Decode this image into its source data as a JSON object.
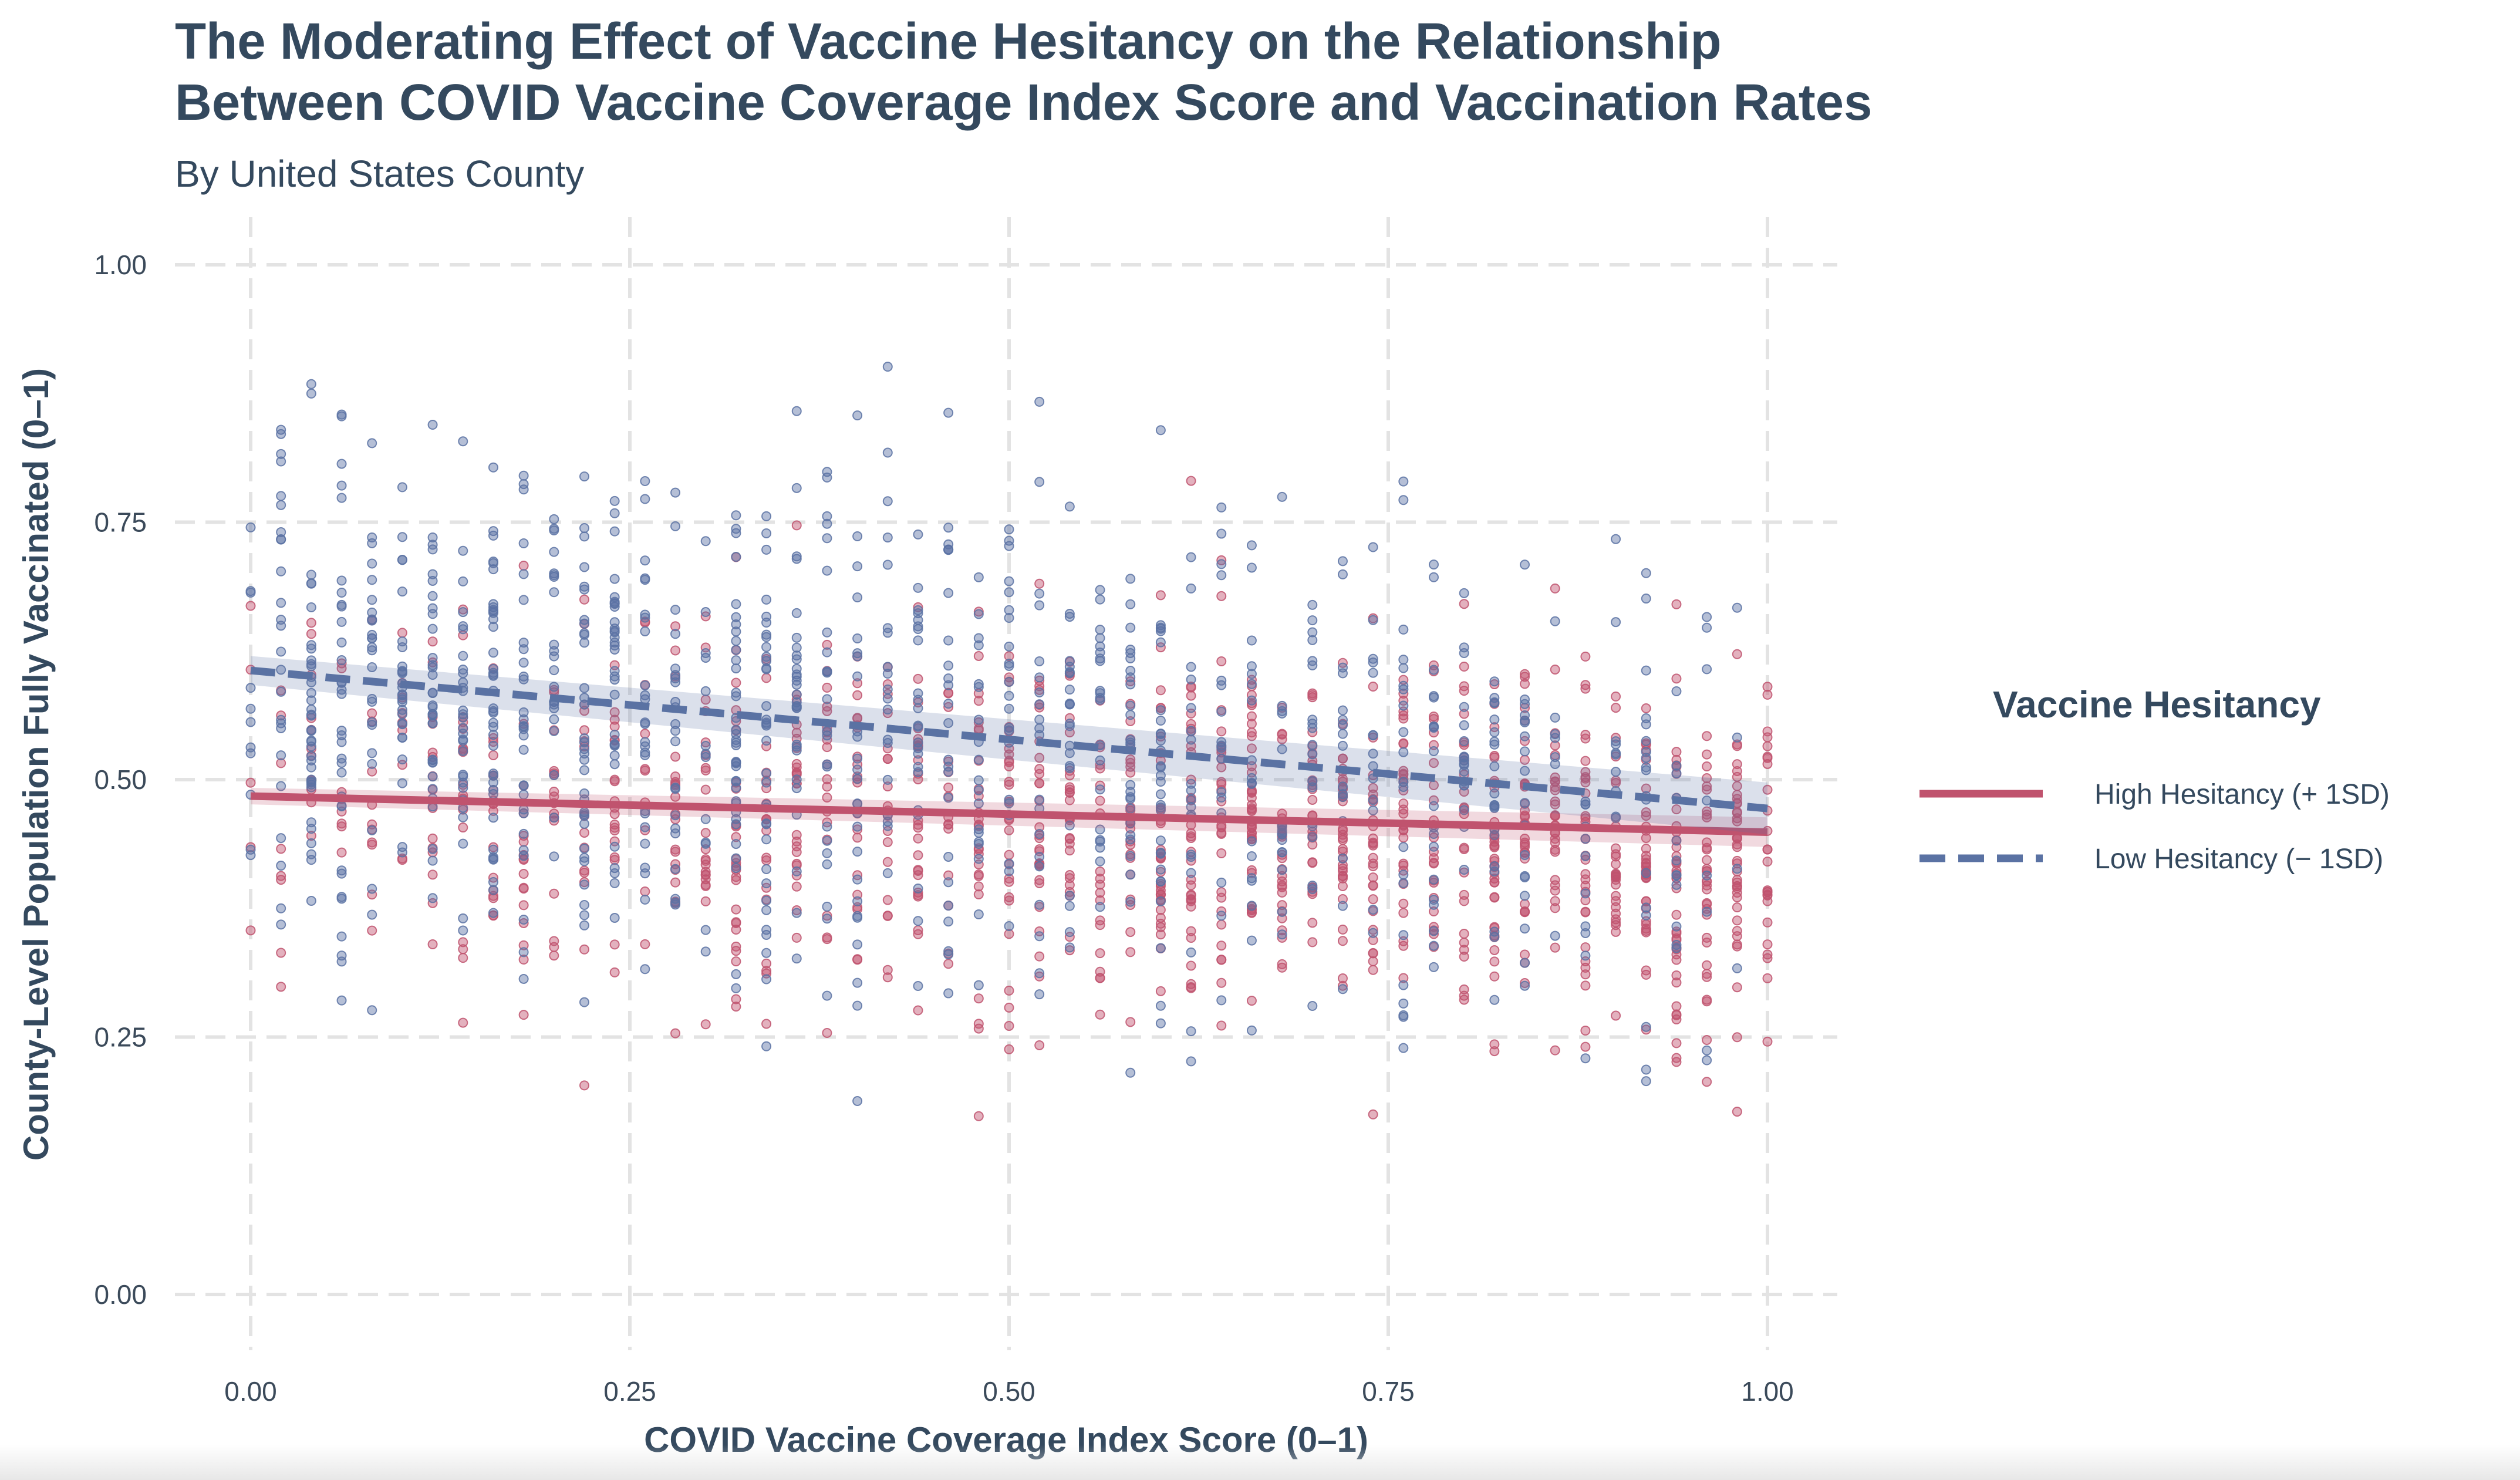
{
  "chart_data": {
    "type": "scatter",
    "title_lines": [
      "The Moderating Effect of Vaccine Hesitancy on the Relationship",
      "Between COVID Vaccine Coverage Index Score and Vaccination Rates"
    ],
    "subtitle": "By United States County",
    "xlabel": "COVID Vaccine Coverage Index Score (0–1)",
    "ylabel": "County-Level Population Fully Vaccinated (0–1)",
    "xlim": [
      -0.05,
      1.05
    ],
    "ylim": [
      -0.05,
      1.05
    ],
    "x_ticks": [
      0,
      0.25,
      0.5,
      0.75,
      1
    ],
    "x_tick_labels": [
      "0.00",
      "0.25",
      "0.50",
      "0.75",
      "1.00"
    ],
    "y_ticks": [
      0,
      0.25,
      0.5,
      0.75,
      1
    ],
    "y_tick_labels": [
      "0.00",
      "0.25",
      "0.50",
      "0.75",
      "1.00"
    ],
    "grid": true,
    "legend": {
      "title": "Vaccine Hesitancy",
      "position": "right"
    },
    "series": [
      {
        "name": "High Hesitancy (+ 1SD)",
        "color": "#c0536e",
        "line_style": "solid",
        "fit": {
          "x0": 0,
          "y0": 0.484,
          "x1": 1,
          "y1": 0.449
        },
        "band_halfwidth": 0.008,
        "scatter_center": {
          "intercept": 0.49,
          "slope": -0.06
        },
        "scatter_spread": 0.09,
        "scatter_x_skew": "high",
        "n_points": 1200,
        "seed": 11
      },
      {
        "name": "Low Hesitancy (− 1SD)",
        "color": "#5a72a3",
        "line_style": "dashed",
        "fit": {
          "x0": 0,
          "y0": 0.606,
          "x1": 1,
          "y1": 0.472
        },
        "band_halfwidth": 0.014,
        "scatter_center": {
          "intercept": 0.6,
          "slope": -0.13
        },
        "scatter_spread": 0.12,
        "scatter_x_skew": "low",
        "n_points": 1100,
        "seed": 29
      }
    ]
  }
}
